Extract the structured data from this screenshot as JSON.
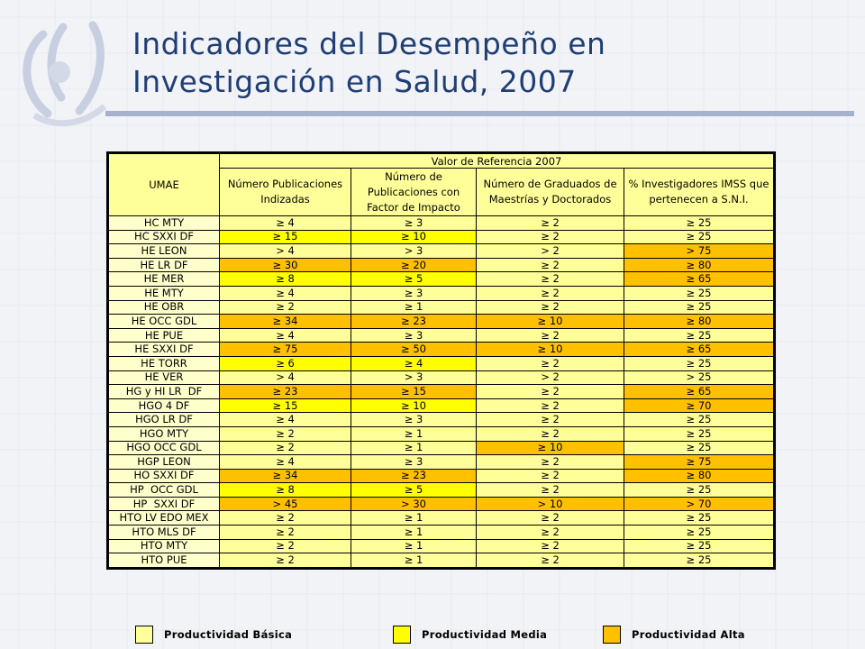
{
  "title": {
    "line1": "Indicadores del Desempeño en",
    "line2": "Investigación en Salud, 2007"
  },
  "table": {
    "umae_header": "UMAE",
    "group_header": "Valor de Referencia 2007",
    "columns": [
      "Número Publicaciones Indizadas",
      "Número de Publicaciones con Factor de Impacto",
      "Número de Graduados de Maestrías y Doctorados",
      "% Investigadores IMSS que pertenecen a S.N.I."
    ],
    "rows": [
      {
        "name": "HC MTY",
        "values": [
          "≥ 4",
          "≥ 3",
          "≥ 2",
          "≥ 25"
        ],
        "levels": [
          "b",
          "b",
          "b",
          "b"
        ]
      },
      {
        "name": "HC SXXI DF",
        "values": [
          "≥ 15",
          "≥ 10",
          "≥ 2",
          "≥ 25"
        ],
        "levels": [
          "m",
          "m",
          "b",
          "b"
        ]
      },
      {
        "name": "HE LEON",
        "values": [
          "> 4",
          "> 3",
          "> 2",
          "> 75"
        ],
        "levels": [
          "b",
          "b",
          "b",
          "a"
        ]
      },
      {
        "name": "HE LR DF",
        "values": [
          "≥ 30",
          "≥ 20",
          "≥ 2",
          "≥ 80"
        ],
        "levels": [
          "a",
          "a",
          "b",
          "a"
        ]
      },
      {
        "name": "HE MER",
        "values": [
          "≥ 8",
          "≥ 5",
          "≥ 2",
          "≥ 65"
        ],
        "levels": [
          "m",
          "m",
          "b",
          "a"
        ]
      },
      {
        "name": "HE MTY",
        "values": [
          "≥ 4",
          "≥ 3",
          "≥ 2",
          "≥ 25"
        ],
        "levels": [
          "b",
          "b",
          "b",
          "b"
        ]
      },
      {
        "name": "HE OBR",
        "values": [
          "≥ 2",
          "≥ 1",
          "≥ 2",
          "≥ 25"
        ],
        "levels": [
          "b",
          "b",
          "b",
          "b"
        ]
      },
      {
        "name": "HE OCC GDL",
        "values": [
          "≥ 34",
          "≥ 23",
          "≥ 10",
          "≥ 80"
        ],
        "levels": [
          "a",
          "a",
          "a",
          "a"
        ]
      },
      {
        "name": "HE PUE",
        "values": [
          "≥ 4",
          "≥ 3",
          "≥ 2",
          "≥ 25"
        ],
        "levels": [
          "b",
          "b",
          "b",
          "b"
        ]
      },
      {
        "name": "HE SXXI DF",
        "values": [
          "≥ 75",
          "≥ 50",
          "≥ 10",
          "≥ 65"
        ],
        "levels": [
          "a",
          "a",
          "a",
          "a"
        ]
      },
      {
        "name": "HE TORR",
        "values": [
          "≥ 6",
          "≥ 4",
          "≥ 2",
          "≥ 25"
        ],
        "levels": [
          "m",
          "m",
          "b",
          "b"
        ]
      },
      {
        "name": "HE VER",
        "values": [
          "> 4",
          "> 3",
          "> 2",
          "> 25"
        ],
        "levels": [
          "b",
          "b",
          "b",
          "b"
        ]
      },
      {
        "name": "HG y HI LR  DF",
        "values": [
          "≥ 23",
          "≥ 15",
          "≥ 2",
          "≥ 65"
        ],
        "levels": [
          "a",
          "a",
          "b",
          "a"
        ]
      },
      {
        "name": "HGO 4 DF",
        "values": [
          "≥ 15",
          "≥ 10",
          "≥ 2",
          "≥ 70"
        ],
        "levels": [
          "m",
          "m",
          "b",
          "a"
        ]
      },
      {
        "name": "HGO LR DF",
        "values": [
          "≥ 4",
          "≥ 3",
          "≥ 2",
          "≥ 25"
        ],
        "levels": [
          "b",
          "b",
          "b",
          "b"
        ]
      },
      {
        "name": "HGO MTY",
        "values": [
          "≥ 2",
          "≥ 1",
          "≥ 2",
          "≥ 25"
        ],
        "levels": [
          "b",
          "b",
          "b",
          "b"
        ]
      },
      {
        "name": "HGO OCC GDL",
        "values": [
          "≥ 2",
          "≥ 1",
          "≥ 10",
          "≥ 25"
        ],
        "levels": [
          "b",
          "b",
          "a",
          "b"
        ]
      },
      {
        "name": "HGP LEON",
        "values": [
          "≥ 4",
          "≥ 3",
          "≥ 2",
          "≥ 75"
        ],
        "levels": [
          "b",
          "b",
          "b",
          "a"
        ]
      },
      {
        "name": "HO SXXI DF",
        "values": [
          "≥ 34",
          "≥ 23",
          "≥ 2",
          "≥ 80"
        ],
        "levels": [
          "a",
          "a",
          "b",
          "a"
        ]
      },
      {
        "name": "HP  OCC GDL",
        "values": [
          "≥ 8",
          "≥ 5",
          "≥ 2",
          "≥ 25"
        ],
        "levels": [
          "m",
          "m",
          "b",
          "b"
        ]
      },
      {
        "name": "HP  SXXI DF",
        "values": [
          "> 45",
          "> 30",
          "> 10",
          "> 70"
        ],
        "levels": [
          "a",
          "a",
          "a",
          "a"
        ]
      },
      {
        "name": "HTO LV EDO MEX",
        "values": [
          "≥ 2",
          "≥ 1",
          "≥ 2",
          "≥ 25"
        ],
        "levels": [
          "b",
          "b",
          "b",
          "b"
        ]
      },
      {
        "name": "HTO MLS DF",
        "values": [
          "≥ 2",
          "≥ 1",
          "≥ 2",
          "≥ 25"
        ],
        "levels": [
          "b",
          "b",
          "b",
          "b"
        ]
      },
      {
        "name": "HTO MTY",
        "values": [
          "≥ 2",
          "≥ 1",
          "≥ 2",
          "≥ 25"
        ],
        "levels": [
          "b",
          "b",
          "b",
          "b"
        ]
      },
      {
        "name": "HTO PUE",
        "values": [
          "≥ 2",
          "≥ 1",
          "≥ 2",
          "≥ 25"
        ],
        "levels": [
          "b",
          "b",
          "b",
          "b"
        ]
      }
    ]
  },
  "legend": {
    "basica": {
      "label": "Productividad Básica",
      "color": "#ffff99"
    },
    "media": {
      "label": "Productividad Media",
      "color": "#ffff00"
    },
    "alta": {
      "label": "Productividad Alta",
      "color": "#ffc000"
    }
  }
}
